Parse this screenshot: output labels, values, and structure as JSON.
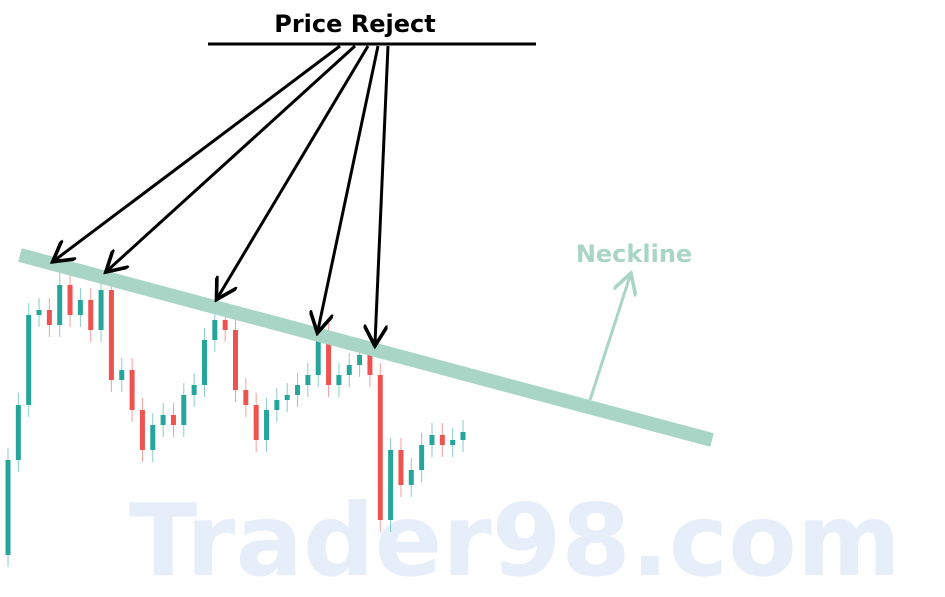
{
  "chart_data": {
    "type": "candlestick",
    "title": "Price Reject",
    "annotation": "Neckline",
    "watermark": "Trader98.com",
    "up_color": "#26a69a",
    "down_color": "#ef5350",
    "neckline_color": "#a8d5c6",
    "ylim": [
      0,
      600
    ],
    "open": [
      45,
      140,
      195,
      285,
      290,
      275,
      315,
      285,
      300,
      270,
      310,
      220,
      230,
      190,
      150,
      175,
      185,
      175,
      205,
      215,
      260,
      280,
      270,
      210,
      195,
      160,
      190,
      200,
      205,
      215,
      225,
      265,
      215,
      225,
      235,
      245,
      225,
      80,
      150,
      115,
      130,
      155,
      165,
      155,
      160
    ],
    "high": [
      152,
      207,
      297,
      302,
      302,
      327,
      327,
      312,
      312,
      322,
      322,
      242,
      242,
      202,
      187,
      197,
      197,
      217,
      227,
      272,
      292,
      292,
      282,
      222,
      207,
      202,
      212,
      217,
      227,
      237,
      277,
      277,
      237,
      247,
      257,
      257,
      237,
      162,
      162,
      142,
      167,
      177,
      177,
      172,
      180
    ],
    "low": [
      33,
      128,
      183,
      273,
      263,
      263,
      273,
      273,
      258,
      258,
      208,
      208,
      178,
      138,
      138,
      163,
      163,
      163,
      193,
      203,
      248,
      258,
      198,
      183,
      148,
      148,
      178,
      188,
      193,
      203,
      213,
      203,
      203,
      213,
      223,
      213,
      68,
      68,
      103,
      103,
      118,
      143,
      143,
      143,
      148
    ],
    "close": [
      140,
      195,
      285,
      290,
      275,
      315,
      285,
      300,
      270,
      310,
      220,
      230,
      190,
      150,
      175,
      185,
      175,
      205,
      215,
      260,
      280,
      270,
      210,
      195,
      160,
      190,
      200,
      205,
      215,
      225,
      265,
      215,
      225,
      235,
      245,
      225,
      80,
      150,
      115,
      130,
      155,
      165,
      155,
      160,
      168
    ]
  }
}
